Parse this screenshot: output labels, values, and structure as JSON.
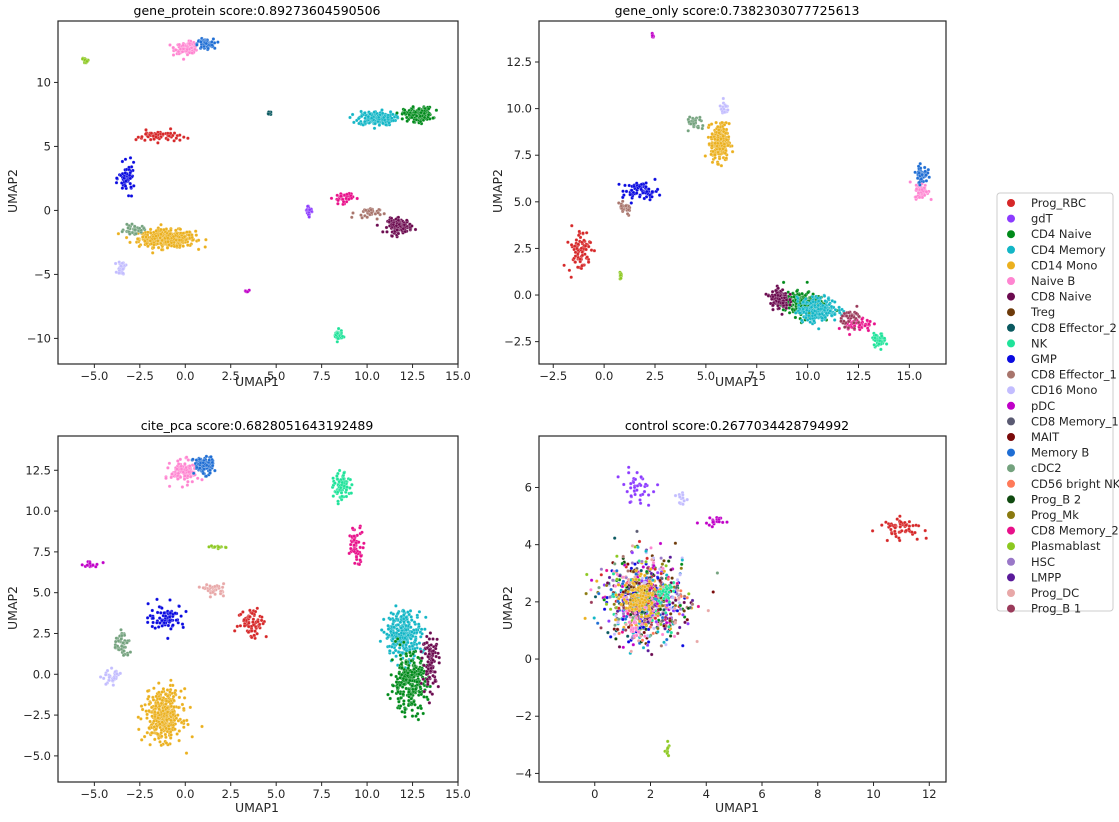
{
  "colors": {
    "Prog_RBC": "#d62728",
    "gdT": "#8c3bff",
    "CD4 Naive": "#008a1a",
    "CD4 Memory": "#13b6c6",
    "CD14 Mono": "#ebb01e",
    "Naive B": "#ff85d1",
    "CD8 Naive": "#6b0a4f",
    "Treg": "#6d3a0a",
    "CD8 Effector_2": "#0a5960",
    "NK": "#1fe39a",
    "GMP": "#0a0ae0",
    "CD8 Effector_1": "#a8756c",
    "CD16 Mono": "#c3bdff",
    "pDC": "#c000c8",
    "CD8 Memory_1": "#5a5a72",
    "MAIT": "#7a0a0a",
    "Memory B": "#1f6ed4",
    "cDC2": "#74a27e",
    "CD56 bright NK": "#ff7a59",
    "Prog_B 2": "#104a10",
    "Prog_Mk": "#8a7a10",
    "CD8 Memory_2": "#e8108a",
    "Plasmablast": "#8cc820",
    "HSC": "#9a78c8",
    "LMPP": "#5a1a9a",
    "Prog_DC": "#e8a8a8",
    "Prog_B 1": "#9a3a5a"
  },
  "legend": {
    "entries": [
      "Prog_RBC",
      "gdT",
      "CD4 Naive",
      "CD4 Memory",
      "CD14 Mono",
      "Naive B",
      "CD8 Naive",
      "Treg",
      "CD8 Effector_2",
      "NK",
      "GMP",
      "CD8 Effector_1",
      "CD16 Mono",
      "pDC",
      "CD8 Memory_1",
      "MAIT",
      "Memory B",
      "cDC2",
      "CD56 bright NK",
      "Prog_B 2",
      "Prog_Mk",
      "CD8 Memory_2",
      "Plasmablast",
      "HSC",
      "LMPP",
      "Prog_DC",
      "Prog_B 1"
    ]
  },
  "chart_data": [
    {
      "type": "scatter",
      "title": "gene_protein score:0.89273604590506",
      "xlabel": "UMAP1",
      "ylabel": "UMAP2",
      "xlim": [
        -7,
        15
      ],
      "ylim": [
        -12,
        14.8
      ],
      "xticks": [
        -5.0,
        -2.5,
        0.0,
        2.5,
        5.0,
        7.5,
        10.0,
        12.5,
        15.0
      ],
      "yticks": [
        -10,
        -5,
        0,
        5,
        10
      ],
      "xtick_labels": [
        "−5.0",
        "−2.5",
        "0.0",
        "2.5",
        "5.0",
        "7.5",
        "10.0",
        "12.5",
        "15.0"
      ],
      "ytick_labels": [
        "−10",
        "−5",
        "0",
        "5",
        "10"
      ],
      "clusters": [
        {
          "label": "CD14 Mono",
          "x": -1.0,
          "y": -2.2,
          "sx": 1.4,
          "sy": 0.6,
          "n": 420
        },
        {
          "label": "Naive B",
          "x": 0.1,
          "y": 12.7,
          "sx": 0.6,
          "sy": 0.4,
          "n": 110
        },
        {
          "label": "Memory B",
          "x": 1.1,
          "y": 13.0,
          "sx": 0.4,
          "sy": 0.35,
          "n": 90
        },
        {
          "label": "CD4 Memory",
          "x": 10.5,
          "y": 7.2,
          "sx": 0.9,
          "sy": 0.5,
          "n": 200
        },
        {
          "label": "CD4 Naive",
          "x": 12.8,
          "y": 7.5,
          "sx": 0.7,
          "sy": 0.5,
          "n": 180
        },
        {
          "label": "CD8 Naive",
          "x": 11.8,
          "y": -1.2,
          "sx": 0.6,
          "sy": 0.5,
          "n": 140
        },
        {
          "label": "CD8 Memory_2",
          "x": 8.7,
          "y": 1.0,
          "sx": 0.5,
          "sy": 0.4,
          "n": 40
        },
        {
          "label": "Prog_RBC",
          "x": -1.5,
          "y": 5.8,
          "sx": 1.1,
          "sy": 0.4,
          "n": 60
        },
        {
          "label": "GMP",
          "x": -3.2,
          "y": 2.5,
          "sx": 0.4,
          "sy": 1.0,
          "n": 60
        },
        {
          "label": "NK",
          "x": 8.4,
          "y": -9.8,
          "sx": 0.2,
          "sy": 0.4,
          "n": 50
        },
        {
          "label": "cDC2",
          "x": -2.8,
          "y": -1.5,
          "sx": 0.5,
          "sy": 0.3,
          "n": 40
        },
        {
          "label": "CD16 Mono",
          "x": -3.5,
          "y": -4.5,
          "sx": 0.2,
          "sy": 0.5,
          "n": 30
        },
        {
          "label": "Plasmablast",
          "x": -5.5,
          "y": 11.7,
          "sx": 0.15,
          "sy": 0.2,
          "n": 15
        },
        {
          "label": "CD8 Effector_2",
          "x": 4.6,
          "y": 7.6,
          "sx": 0.1,
          "sy": 0.1,
          "n": 8
        },
        {
          "label": "pDC",
          "x": 3.4,
          "y": -6.3,
          "sx": 0.1,
          "sy": 0.1,
          "n": 8
        },
        {
          "label": "gdT",
          "x": 6.8,
          "y": 0.0,
          "sx": 0.2,
          "sy": 0.4,
          "n": 25
        },
        {
          "label": "CD8 Effector_1",
          "x": 10.0,
          "y": -0.2,
          "sx": 0.6,
          "sy": 0.4,
          "n": 30
        }
      ]
    },
    {
      "type": "scatter",
      "title": "gene_only score:0.7382303077725613",
      "xlabel": "UMAP1",
      "ylabel": "UMAP2",
      "xlim": [
        -3.2,
        16.8
      ],
      "ylim": [
        -3.7,
        14.7
      ],
      "xticks": [
        -2.5,
        0.0,
        2.5,
        5.0,
        7.5,
        10.0,
        12.5,
        15.0
      ],
      "yticks": [
        -2.5,
        0.0,
        2.5,
        5.0,
        7.5,
        10.0,
        12.5
      ],
      "xtick_labels": [
        "−2.5",
        "0.0",
        "2.5",
        "5.0",
        "7.5",
        "10.0",
        "12.5",
        "15.0"
      ],
      "ytick_labels": [
        "−2.5",
        "0.0",
        "2.5",
        "5.0",
        "7.5",
        "10.0",
        "12.5"
      ],
      "clusters": [
        {
          "label": "CD14 Mono",
          "x": 5.7,
          "y": 8.2,
          "sx": 0.4,
          "sy": 0.9,
          "n": 260
        },
        {
          "label": "Naive B",
          "x": 15.6,
          "y": 5.6,
          "sx": 0.3,
          "sy": 0.4,
          "n": 70
        },
        {
          "label": "Memory B",
          "x": 15.6,
          "y": 6.5,
          "sx": 0.25,
          "sy": 0.4,
          "n": 60
        },
        {
          "label": "Prog_RBC",
          "x": -1.2,
          "y": 2.4,
          "sx": 0.5,
          "sy": 1.1,
          "n": 80
        },
        {
          "label": "GMP",
          "x": 1.8,
          "y": 5.6,
          "sx": 0.8,
          "sy": 0.4,
          "n": 70
        },
        {
          "label": "CD4 Naive",
          "x": 9.8,
          "y": -0.5,
          "sx": 0.9,
          "sy": 0.6,
          "n": 260
        },
        {
          "label": "CD4 Memory",
          "x": 10.5,
          "y": -0.8,
          "sx": 0.9,
          "sy": 0.6,
          "n": 240
        },
        {
          "label": "CD8 Naive",
          "x": 8.6,
          "y": -0.2,
          "sx": 0.4,
          "sy": 0.5,
          "n": 120
        },
        {
          "label": "NK",
          "x": 13.5,
          "y": -2.4,
          "sx": 0.3,
          "sy": 0.3,
          "n": 50
        },
        {
          "label": "CD8 Memory_2",
          "x": 12.5,
          "y": -1.6,
          "sx": 0.6,
          "sy": 0.4,
          "n": 60
        },
        {
          "label": "Prog_B 1",
          "x": 12.2,
          "y": -1.2,
          "sx": 0.5,
          "sy": 0.4,
          "n": 40
        },
        {
          "label": "Plasmablast",
          "x": 0.8,
          "y": 1.0,
          "sx": 0.1,
          "sy": 0.15,
          "n": 10
        },
        {
          "label": "pDC",
          "x": 2.4,
          "y": 13.9,
          "sx": 0.1,
          "sy": 0.1,
          "n": 8
        },
        {
          "label": "cDC2",
          "x": 4.5,
          "y": 9.2,
          "sx": 0.4,
          "sy": 0.4,
          "n": 30
        },
        {
          "label": "CD16 Mono",
          "x": 5.9,
          "y": 10.0,
          "sx": 0.2,
          "sy": 0.3,
          "n": 20
        },
        {
          "label": "CD8 Effector_1",
          "x": 1.0,
          "y": 4.6,
          "sx": 0.4,
          "sy": 0.3,
          "n": 30
        }
      ]
    },
    {
      "type": "scatter",
      "title": "cite_pca score:0.6828051643192489",
      "xlabel": "UMAP1",
      "ylabel": "UMAP2",
      "xlim": [
        -7,
        15
      ],
      "ylim": [
        -6.6,
        14.6
      ],
      "xticks": [
        -5.0,
        -2.5,
        0.0,
        2.5,
        5.0,
        7.5,
        10.0,
        12.5,
        15.0
      ],
      "yticks": [
        -5.0,
        -2.5,
        0.0,
        2.5,
        5.0,
        7.5,
        10.0,
        12.5
      ],
      "xtick_labels": [
        "−5.0",
        "−2.5",
        "0.0",
        "2.5",
        "5.0",
        "7.5",
        "10.0",
        "12.5",
        "15.0"
      ],
      "ytick_labels": [
        "−5.0",
        "−2.5",
        "0.0",
        "2.5",
        "5.0",
        "7.5",
        "10.0",
        "12.5"
      ],
      "clusters": [
        {
          "label": "CD14 Mono",
          "x": -1.2,
          "y": -2.5,
          "sx": 0.9,
          "sy": 1.4,
          "n": 380
        },
        {
          "label": "Naive B",
          "x": 0.0,
          "y": 12.4,
          "sx": 0.7,
          "sy": 0.6,
          "n": 130
        },
        {
          "label": "Memory B",
          "x": 1.0,
          "y": 12.8,
          "sx": 0.5,
          "sy": 0.5,
          "n": 100
        },
        {
          "label": "NK",
          "x": 8.6,
          "y": 11.4,
          "sx": 0.4,
          "sy": 0.8,
          "n": 80
        },
        {
          "label": "CD8 Memory_2",
          "x": 9.4,
          "y": 8.0,
          "sx": 0.4,
          "sy": 1.0,
          "n": 60
        },
        {
          "label": "CD4 Memory",
          "x": 12.0,
          "y": 2.5,
          "sx": 0.9,
          "sy": 1.3,
          "n": 280
        },
        {
          "label": "CD4 Naive",
          "x": 12.3,
          "y": -0.5,
          "sx": 0.9,
          "sy": 1.6,
          "n": 280
        },
        {
          "label": "CD8 Naive",
          "x": 13.5,
          "y": 0.8,
          "sx": 0.4,
          "sy": 1.4,
          "n": 100
        },
        {
          "label": "Prog_RBC",
          "x": 3.7,
          "y": 3.2,
          "sx": 0.7,
          "sy": 0.9,
          "n": 70
        },
        {
          "label": "GMP",
          "x": -1.0,
          "y": 3.5,
          "sx": 0.9,
          "sy": 0.7,
          "n": 80
        },
        {
          "label": "pDC",
          "x": -5.2,
          "y": 6.7,
          "sx": 0.5,
          "sy": 0.15,
          "n": 20
        },
        {
          "label": "Plasmablast",
          "x": 1.9,
          "y": 7.8,
          "sx": 0.4,
          "sy": 0.08,
          "n": 15
        },
        {
          "label": "cDC2",
          "x": -3.5,
          "y": 1.8,
          "sx": 0.4,
          "sy": 0.8,
          "n": 50
        },
        {
          "label": "CD16 Mono",
          "x": -4.0,
          "y": -0.2,
          "sx": 0.5,
          "sy": 0.4,
          "n": 30
        },
        {
          "label": "Prog_DC",
          "x": 1.6,
          "y": 5.2,
          "sx": 0.5,
          "sy": 0.3,
          "n": 40
        }
      ]
    },
    {
      "type": "scatter",
      "title": "control score:0.2677034428794992",
      "xlabel": "UMAP1",
      "ylabel": "UMAP2",
      "xlim": [
        -2.0,
        12.6
      ],
      "ylim": [
        -4.3,
        7.8
      ],
      "xticks": [
        0,
        2,
        4,
        6,
        8,
        10,
        12
      ],
      "yticks": [
        -4,
        -2,
        0,
        2,
        4,
        6
      ],
      "xtick_labels": [
        "0",
        "2",
        "4",
        "6",
        "8",
        "10",
        "12"
      ],
      "ytick_labels": [
        "−4",
        "−2",
        "0",
        "2",
        "4",
        "6"
      ],
      "clusters": [
        {
          "label": "mixed",
          "x": 1.8,
          "y": 2.1,
          "sx": 1.25,
          "sy": 1.3,
          "n": 900
        },
        {
          "label": "CD14 Mono",
          "x": 1.6,
          "y": 2.1,
          "sx": 0.5,
          "sy": 0.7,
          "n": 120
        },
        {
          "label": "NK",
          "x": 2.5,
          "y": 2.3,
          "sx": 0.25,
          "sy": 0.3,
          "n": 25
        },
        {
          "label": "Naive B",
          "x": 1.5,
          "y": 1.1,
          "sx": 0.3,
          "sy": 0.3,
          "n": 20
        },
        {
          "label": "Prog_RBC",
          "x": 11.0,
          "y": 4.6,
          "sx": 0.7,
          "sy": 0.3,
          "n": 60
        },
        {
          "label": "pDC",
          "x": 4.3,
          "y": 4.8,
          "sx": 0.4,
          "sy": 0.2,
          "n": 20
        },
        {
          "label": "CD16 Mono",
          "x": 3.1,
          "y": 5.6,
          "sx": 0.15,
          "sy": 0.2,
          "n": 15
        },
        {
          "label": "Plasmablast",
          "x": 2.6,
          "y": -3.2,
          "sx": 0.08,
          "sy": 0.3,
          "n": 12
        },
        {
          "label": "gdT",
          "x": 1.5,
          "y": 6.0,
          "sx": 0.5,
          "sy": 0.5,
          "n": 40
        }
      ]
    }
  ]
}
